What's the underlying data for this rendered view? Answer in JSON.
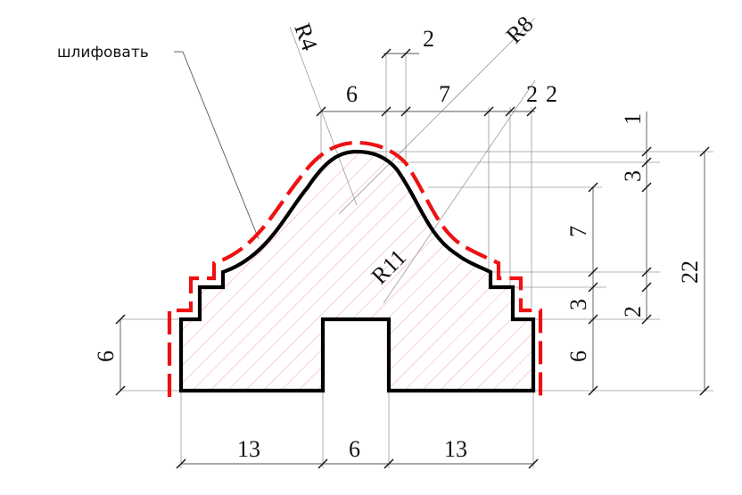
{
  "annotation": {
    "label": "шлифовать"
  },
  "dimensions": {
    "radius_top": "R4",
    "radius_side": "R8",
    "radius_center": "R11",
    "top_2": "2",
    "top_6": "6",
    "top_7": "7",
    "top_2a": "2",
    "top_2b": "2",
    "right_1": "1",
    "right_3": "3",
    "right_7": "7",
    "right_3b": "3",
    "right_2": "2",
    "right_22": "22",
    "right_6": "6",
    "left_6": "6",
    "bottom_13_left": "13",
    "bottom_6": "6",
    "bottom_13_right": "13"
  },
  "colors": {
    "outline": "#000000",
    "grind_line": "#ee1111",
    "hatch": "#e88080"
  }
}
